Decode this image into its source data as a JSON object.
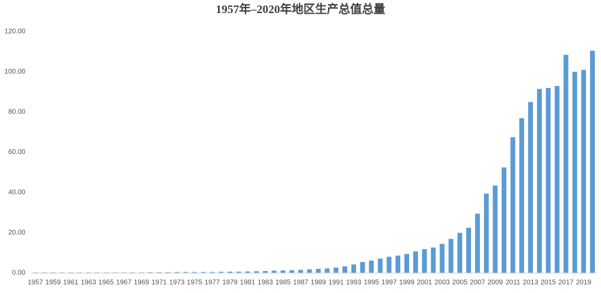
{
  "chart_data": {
    "type": "bar",
    "title": "1957年–2020年地区生产总值总量",
    "categories": [
      "1957",
      null,
      "1959",
      null,
      "1961",
      null,
      "1963",
      null,
      "1965",
      null,
      "1967",
      null,
      "1969",
      null,
      "1971",
      null,
      "1973",
      null,
      "1975",
      null,
      "1977",
      null,
      "1979",
      null,
      "1981",
      null,
      "1983",
      null,
      "1985",
      null,
      "1987",
      null,
      "1989",
      null,
      "1991",
      null,
      "1993",
      null,
      "1995",
      null,
      "1997",
      null,
      "1999",
      null,
      "2001",
      null,
      "2003",
      null,
      "2005",
      null,
      "2007",
      null,
      "2009",
      null,
      "2011",
      null,
      "2013",
      null,
      "2015",
      null,
      "2017",
      null,
      "2019",
      null
    ],
    "values": [
      0.3,
      0.3,
      0.3,
      0.3,
      0.3,
      0.3,
      0.3,
      0.3,
      0.3,
      0.3,
      0.3,
      0.3,
      0.3,
      0.4,
      0.4,
      0.4,
      0.5,
      0.5,
      0.5,
      0.5,
      0.5,
      0.6,
      0.7,
      0.7,
      0.8,
      0.9,
      1.0,
      1.2,
      1.3,
      1.4,
      1.6,
      1.9,
      2.1,
      2.3,
      2.7,
      3.3,
      4.3,
      5.5,
      6.2,
      7.2,
      8.1,
      8.7,
      9.5,
      10.8,
      11.9,
      12.7,
      14.5,
      17.0,
      20.0,
      22.5,
      29.5,
      39.5,
      43.5,
      52.5,
      67.5,
      77.0,
      85.0,
      91.5,
      92.0,
      93.0,
      108.5,
      100.0,
      101.0,
      110.5
    ],
    "color": "#5b9bd5",
    "ylim": [
      0,
      120
    ],
    "yticks": [
      {
        "value": 0,
        "label": "0.00"
      },
      {
        "value": 20,
        "label": "20.00"
      },
      {
        "value": 40,
        "label": "40.00"
      },
      {
        "value": 60,
        "label": "60.00"
      },
      {
        "value": 80,
        "label": "80.00"
      },
      {
        "value": 100,
        "label": "100.00"
      },
      {
        "value": 120,
        "label": "120.00"
      }
    ],
    "grid": false
  }
}
